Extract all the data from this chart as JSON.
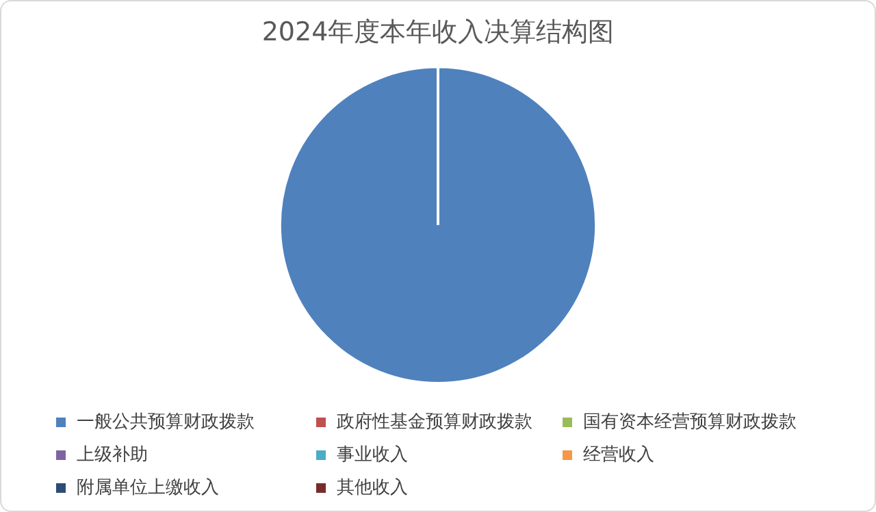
{
  "chart_data": {
    "type": "pie",
    "title": "2024年度本年收入决算结构图",
    "categories": [
      "一般公共预算财政拨款",
      "政府性基金预算财政拨款",
      "国有资本经营预算财政拨款",
      "上级补助",
      "事业收入",
      "经营收入",
      "附属单位上缴收入",
      "其他收入"
    ],
    "values": [
      100,
      0,
      0,
      0,
      0,
      0,
      0,
      0
    ],
    "colors": [
      "#4f81bd",
      "#c0504d",
      "#9bbb59",
      "#8064a2",
      "#4bacc6",
      "#f79646",
      "#2c4d75",
      "#772c2a"
    ],
    "legend": "bottom"
  }
}
